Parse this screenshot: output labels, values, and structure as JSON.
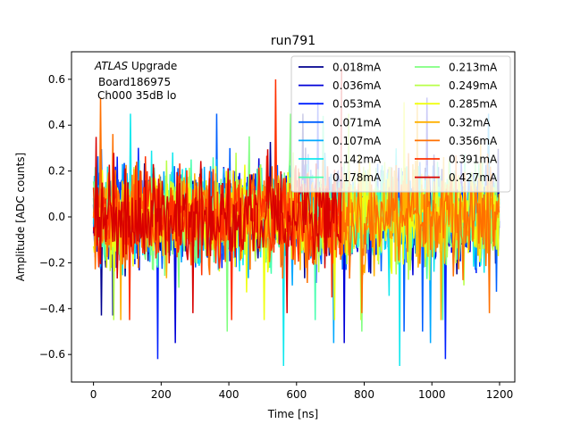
{
  "chart_data": {
    "type": "line",
    "title": "run791",
    "xlabel": "Time [ns]",
    "ylabel": "Amplitude [ADC counts]",
    "xlim": [
      -65,
      1245
    ],
    "ylim": [
      -0.72,
      0.72
    ],
    "xticks": [
      0,
      200,
      400,
      600,
      800,
      1000,
      1200
    ],
    "xtick_labels": [
      "0",
      "200",
      "400",
      "600",
      "800",
      "1000",
      "1200"
    ],
    "yticks": [
      -0.6,
      -0.4,
      -0.2,
      0.0,
      0.2,
      0.4,
      0.6
    ],
    "ytick_labels": [
      "−0.6",
      "−0.4",
      "−0.2",
      "0.0",
      "0.2",
      "0.4",
      "0.6"
    ],
    "grid": false,
    "legend_position": "top-right",
    "legend_columns": 2,
    "annotation": {
      "experiment": "ATLAS",
      "experiment_suffix": " Upgrade",
      "board": "Board186975",
      "channel": "Ch000 35dB lo"
    },
    "series": [
      {
        "name": "0.018mA",
        "color": "#00008f",
        "x_range": [
          0,
          1200
        ],
        "amplitude": 0.16,
        "y_min": -0.43,
        "y_max": 0.45
      },
      {
        "name": "0.036mA",
        "color": "#0000d8",
        "x_range": [
          0,
          1200
        ],
        "amplitude": 0.16,
        "y_min": -0.55,
        "y_max": 0.52
      },
      {
        "name": "0.053mA",
        "color": "#0020ff",
        "x_range": [
          0,
          1200
        ],
        "amplitude": 0.16,
        "y_min": -0.62,
        "y_max": 0.5
      },
      {
        "name": "0.071mA",
        "color": "#0060ff",
        "x_range": [
          0,
          1200
        ],
        "amplitude": 0.16,
        "y_min": -0.5,
        "y_max": 0.45
      },
      {
        "name": "0.107mA",
        "color": "#00a8ff",
        "x_range": [
          0,
          1200
        ],
        "amplitude": 0.16,
        "y_min": -0.55,
        "y_max": 0.45
      },
      {
        "name": "0.142mA",
        "color": "#10e8ee",
        "x_range": [
          0,
          1200
        ],
        "amplitude": 0.16,
        "y_min": -0.65,
        "y_max": 0.45
      },
      {
        "name": "0.178mA",
        "color": "#48ffb0",
        "x_range": [
          0,
          1200
        ],
        "amplitude": 0.16,
        "y_min": -0.45,
        "y_max": 0.44
      },
      {
        "name": "0.213mA",
        "color": "#80ff80",
        "x_range": [
          0,
          1200
        ],
        "amplitude": 0.16,
        "y_min": -0.5,
        "y_max": 0.45
      },
      {
        "name": "0.249mA",
        "color": "#b8ff48",
        "x_range": [
          0,
          1200
        ],
        "amplitude": 0.16,
        "y_min": -0.45,
        "y_max": 0.45
      },
      {
        "name": "0.285mA",
        "color": "#f0ff10",
        "x_range": [
          0,
          1200
        ],
        "amplitude": 0.16,
        "y_min": -0.45,
        "y_max": 0.5
      },
      {
        "name": "0.32mA",
        "color": "#ffb000",
        "x_range": [
          0,
          1200
        ],
        "amplitude": 0.16,
        "y_min": -0.45,
        "y_max": 0.5
      },
      {
        "name": "0.356mA",
        "color": "#ff7000",
        "x_range": [
          0,
          1200
        ],
        "amplitude": 0.17,
        "y_min": -0.42,
        "y_max": 0.52
      },
      {
        "name": "0.391mA",
        "color": "#ff3000",
        "x_range": [
          0,
          735
        ],
        "amplitude": 0.17,
        "y_min": -0.45,
        "y_max": 0.6
      },
      {
        "name": "0.427mA",
        "color": "#d80000",
        "x_range": [
          0,
          735
        ],
        "amplitude": 0.16,
        "y_min": -0.42,
        "y_max": 0.65
      }
    ]
  }
}
